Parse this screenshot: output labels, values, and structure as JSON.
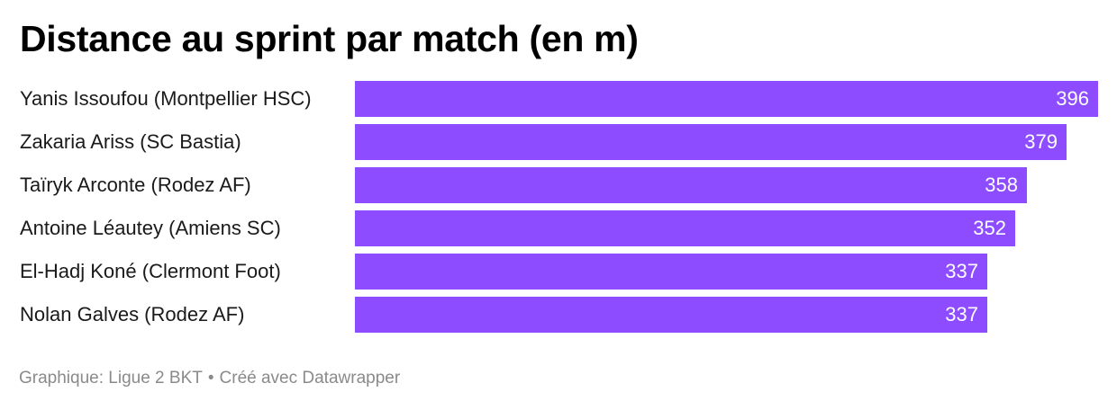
{
  "title": "Distance au sprint par match (en m)",
  "footer": {
    "source": "Graphique: Ligue 2 BKT",
    "separator": "•",
    "credit": "Créé avec Datawrapper"
  },
  "colors": {
    "bar": "#8d4cff",
    "value_text": "#ffffff",
    "label_text": "#1a1a1a",
    "footer_text": "#8a8a8a"
  },
  "chart_data": {
    "type": "bar",
    "orientation": "horizontal",
    "title": "Distance au sprint par match (en m)",
    "categories": [
      "Yanis Issoufou (Montpellier HSC)",
      "Zakaria Ariss (SC Bastia)",
      "Taïryk Arconte (Rodez AF)",
      "Antoine Léautey (Amiens SC)",
      "El-Hadj Koné (Clermont Foot)",
      "Nolan Galves (Rodez AF)"
    ],
    "values": [
      396,
      379,
      358,
      352,
      337,
      337
    ],
    "xlim": [
      0,
      396
    ],
    "grid": false,
    "legend": "none"
  }
}
